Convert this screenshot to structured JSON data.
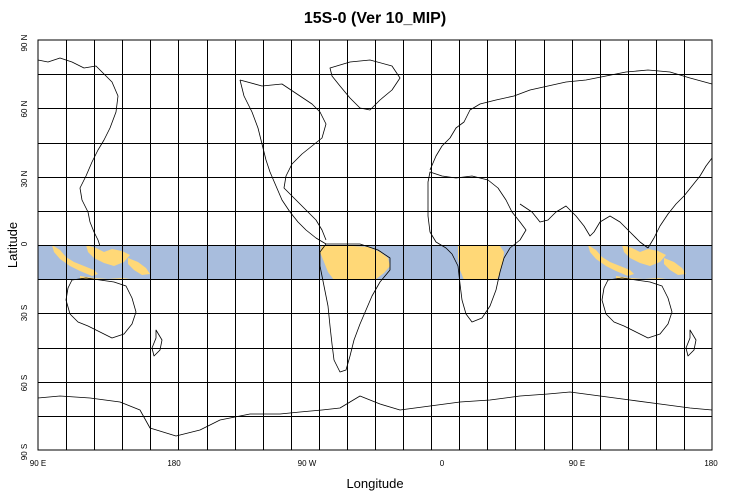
{
  "title": "15S-0 (Ver 10_MIP)",
  "xlabel": "Longitude",
  "ylabel": "Latitude",
  "x_ticks": [
    "90 E",
    "180",
    "90 W",
    "0",
    "90 E",
    "180"
  ],
  "y_ticks": [
    "90 N",
    "60 N",
    "30 N",
    "0",
    "30 S",
    "60 S",
    "90 S"
  ],
  "chart_data": {
    "type": "map",
    "projection": "equirectangular",
    "lon_range": [
      90,
      450
    ],
    "lat_range": [
      -90,
      90
    ],
    "grid": true,
    "grid_spacing_deg": 15,
    "highlight_band": {
      "lat_min": -15,
      "lat_max": 0,
      "lon_min": 90,
      "lon_max": 450
    },
    "colors": {
      "ocean_band": "#a8bddd",
      "land_band": "#ffd877",
      "coast": "#000000",
      "grid": "#000000"
    }
  }
}
